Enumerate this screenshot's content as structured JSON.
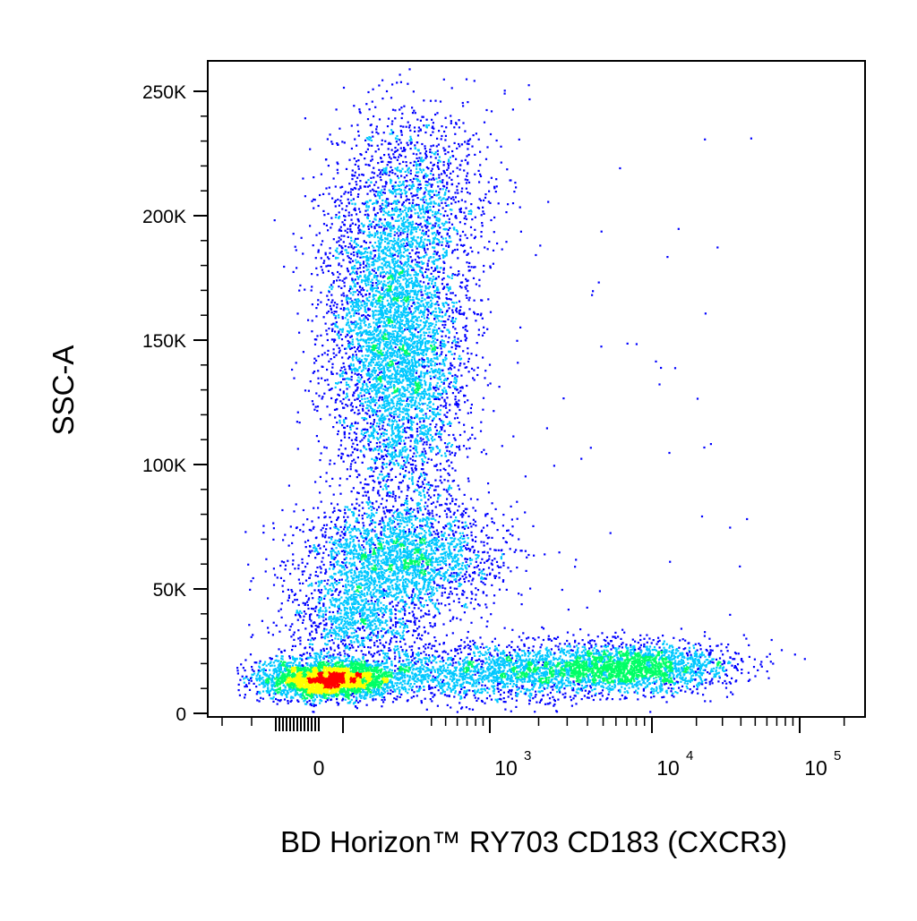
{
  "chart_data": {
    "type": "scatter",
    "title": "",
    "xlabel": "BD Horizon™ RY703 CD183 (CXCR3)",
    "ylabel": "SSC-A",
    "x_scale": "biexponential",
    "y_scale": "linear",
    "xlim": [
      -200,
      200000
    ],
    "ylim": [
      -3000,
      262000
    ],
    "grid": false,
    "legend": "none",
    "color_map": "density: blue → cyan → green → yellow → red",
    "density_colors": [
      "#0000ff",
      "#00c8ff",
      "#00ff66",
      "#ffff00",
      "#ff0000"
    ],
    "y_ticks": [
      {
        "value": 0,
        "label": "0"
      },
      {
        "value": 50000,
        "label": "50K"
      },
      {
        "value": 100000,
        "label": "100K"
      },
      {
        "value": 150000,
        "label": "150K"
      },
      {
        "value": 200000,
        "label": "200K"
      },
      {
        "value": 250000,
        "label": "250K"
      }
    ],
    "x_ticks": [
      {
        "value": 0,
        "base": "0",
        "exp": ""
      },
      {
        "value": 1000,
        "base": "10",
        "exp": "3"
      },
      {
        "value": 10000,
        "base": "10",
        "exp": "4"
      },
      {
        "value": 100000,
        "base": "10",
        "exp": "5"
      }
    ],
    "populations": [
      {
        "name": "",
        "x_center": 15,
        "y_center": 14000,
        "x_spread": 60,
        "y_spread": 5000,
        "relative_size": 0.28
      },
      {
        "name": "",
        "x_center": 250,
        "y_center": 150000,
        "x_spread": 110,
        "y_spread": 40000,
        "relative_size": 0.36
      },
      {
        "name": "",
        "x_center": 280,
        "y_center": 63000,
        "x_spread": 130,
        "y_spread": 12000,
        "relative_size": 0.14
      },
      {
        "name": "",
        "x_center": 8000,
        "y_center": 19000,
        "x_spread": 4000,
        "y_spread": 6000,
        "relative_size": 0.12
      },
      {
        "name": "",
        "x_center": 1500,
        "y_center": 18000,
        "x_spread": 1500,
        "y_spread": 6000,
        "relative_size": 0.1
      }
    ]
  }
}
